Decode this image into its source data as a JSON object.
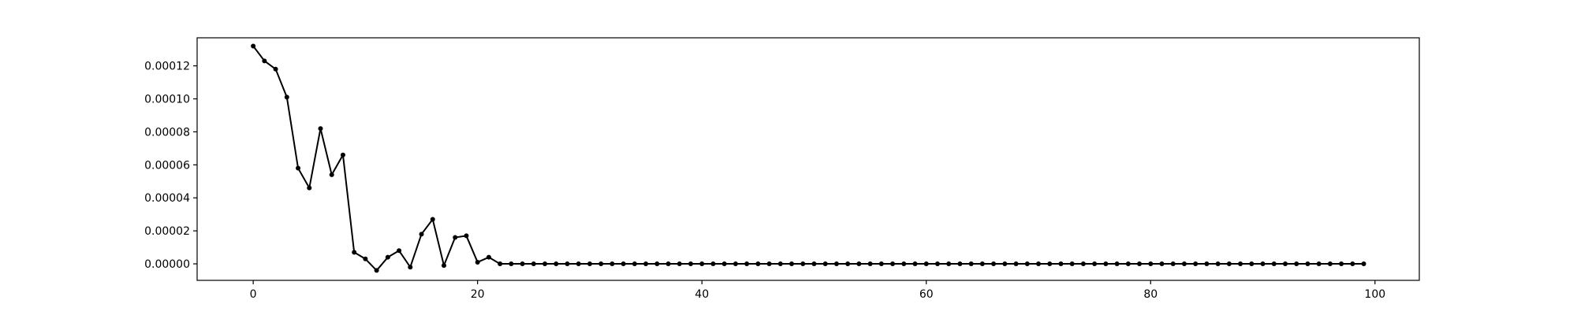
{
  "chart_data": {
    "type": "line",
    "title": "",
    "xlabel": "",
    "ylabel": "",
    "xlim": [
      -5,
      103.95
    ],
    "ylim": [
      -1e-05,
      0.000137
    ],
    "grid": false,
    "legend": "none",
    "marker": "circle",
    "color": "#000000",
    "x_ticks": [
      {
        "value": 0,
        "label": "0"
      },
      {
        "value": 20,
        "label": "20"
      },
      {
        "value": 40,
        "label": "40"
      },
      {
        "value": 60,
        "label": "60"
      },
      {
        "value": 80,
        "label": "80"
      },
      {
        "value": 100,
        "label": "100"
      }
    ],
    "y_ticks": [
      {
        "value": 0,
        "label": "0.00000"
      },
      {
        "value": 2e-05,
        "label": "0.00002"
      },
      {
        "value": 4e-05,
        "label": "0.00004"
      },
      {
        "value": 6e-05,
        "label": "0.00006"
      },
      {
        "value": 8e-05,
        "label": "0.00008"
      },
      {
        "value": 0.0001,
        "label": "0.00010"
      },
      {
        "value": 0.00012,
        "label": "0.00012"
      }
    ],
    "series": [
      {
        "x": [
          0,
          1,
          2,
          3,
          4,
          5,
          6,
          7,
          8,
          9,
          10,
          11,
          12,
          13,
          14,
          15,
          16,
          17,
          18,
          19,
          20,
          21,
          22,
          23,
          24,
          25,
          26,
          27,
          28,
          29,
          30,
          31,
          32,
          33,
          34,
          35,
          36,
          37,
          38,
          39,
          40,
          41,
          42,
          43,
          44,
          45,
          46,
          47,
          48,
          49,
          50,
          51,
          52,
          53,
          54,
          55,
          56,
          57,
          58,
          59,
          60,
          61,
          62,
          63,
          64,
          65,
          66,
          67,
          68,
          69,
          70,
          71,
          72,
          73,
          74,
          75,
          76,
          77,
          78,
          79,
          80,
          81,
          82,
          83,
          84,
          85,
          86,
          87,
          88,
          89,
          90,
          91,
          92,
          93,
          94,
          95,
          96,
          97,
          98,
          99
        ],
        "y": [
          0.000132,
          0.000123,
          0.000118,
          0.000101,
          5.8e-05,
          4.6e-05,
          8.2e-05,
          5.4e-05,
          6.6e-05,
          7e-06,
          3e-06,
          -4e-06,
          4e-06,
          8e-06,
          -2e-06,
          1.8e-05,
          2.7e-05,
          -1e-06,
          1.6e-05,
          1.7e-05,
          1e-06,
          4e-06,
          0,
          0,
          0,
          0,
          0,
          0,
          0,
          0,
          0,
          0,
          0,
          0,
          0,
          0,
          0,
          0,
          0,
          0,
          0,
          0,
          0,
          0,
          0,
          0,
          0,
          0,
          0,
          0,
          0,
          0,
          0,
          0,
          0,
          0,
          0,
          0,
          0,
          0,
          0,
          0,
          0,
          0,
          0,
          0,
          0,
          0,
          0,
          0,
          0,
          0,
          0,
          0,
          0,
          0,
          0,
          0,
          0,
          0,
          0,
          0,
          0,
          0,
          0,
          0,
          0,
          0,
          0,
          0,
          0,
          0,
          0,
          0,
          0,
          0,
          0,
          0,
          0,
          0
        ]
      }
    ]
  }
}
